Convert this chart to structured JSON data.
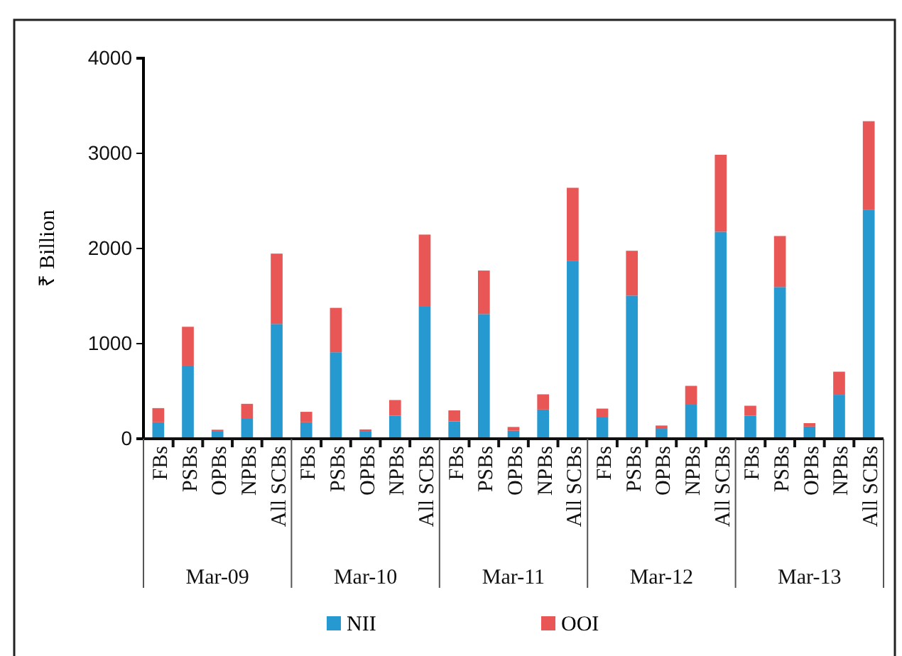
{
  "chart_data": {
    "type": "bar",
    "stacked": true,
    "ylabel": "₹ Billion",
    "categories": [
      "FBs",
      "PSBs",
      "OPBs",
      "NPBs",
      "All SCBs",
      "FBs",
      "PSBs",
      "OPBs",
      "NPBs",
      "All SCBs",
      "FBs",
      "PSBs",
      "OPBs",
      "NPBs",
      "All SCBs",
      "FBs",
      "PSBs",
      "OPBs",
      "NPBs",
      "All SCBs",
      "FBs",
      "PSBs",
      "OPBs",
      "NPBs",
      "All SCBs"
    ],
    "annotations": [
      "Mar-09",
      "Mar-10",
      "Mar-11",
      "Mar-12",
      "Mar-13"
    ],
    "series": [
      {
        "name": "NII",
        "color": "#2699d0",
        "values": [
          173,
          769,
          75,
          209,
          1207,
          173,
          909,
          75,
          243,
          1395,
          183,
          1311,
          84,
          307,
          1872,
          224,
          1505,
          104,
          358,
          2176,
          243,
          1595,
          128,
          462,
          2404
        ]
      },
      {
        "name": "OOI",
        "color": "#e85656",
        "values": [
          149,
          408,
          20,
          158,
          739,
          110,
          467,
          23,
          164,
          751,
          115,
          457,
          40,
          160,
          766,
          93,
          471,
          35,
          198,
          809,
          104,
          536,
          36,
          243,
          934
        ]
      }
    ],
    "ylim": [
      0,
      4000
    ],
    "yticks": [
      0,
      1000,
      2000,
      3000,
      4000
    ],
    "grid": false,
    "legend": "bottom"
  }
}
